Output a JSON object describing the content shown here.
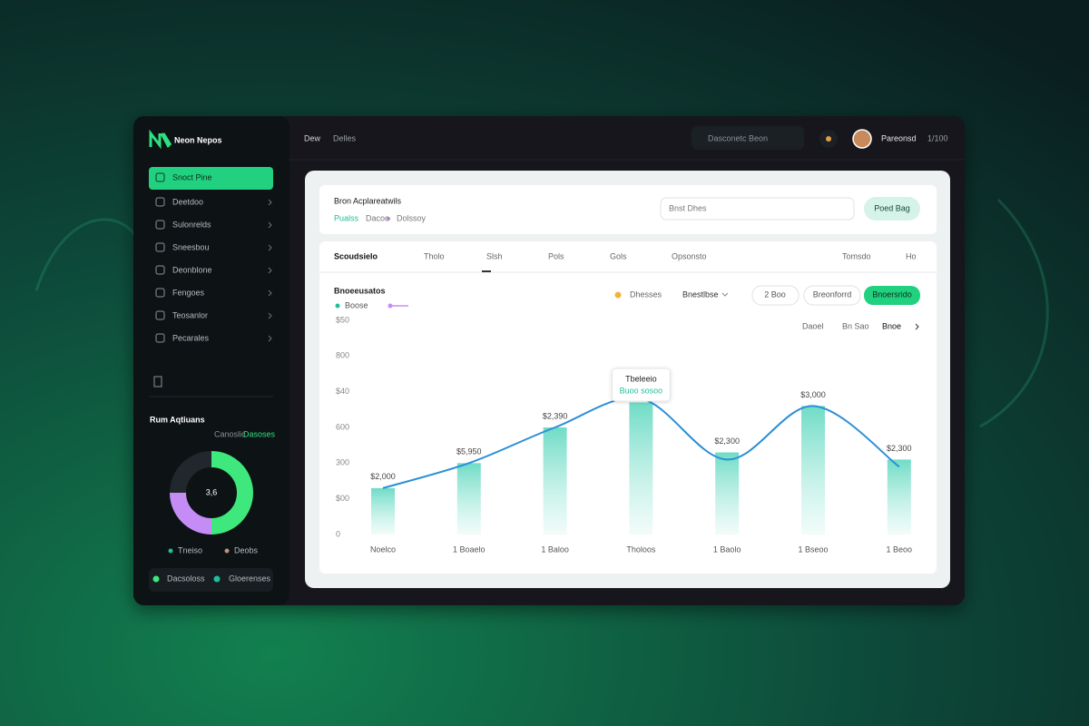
{
  "brand": "Neon Nepos",
  "breadcrumb": [
    "Dew",
    "Delles"
  ],
  "search": "Dasconetc Beon",
  "user": "Pareonsd",
  "user_meta": "1/100",
  "nav": [
    "Snoct Pine",
    "Deetdoo",
    "Sulonrelds",
    "Sneesbou",
    "Deonblone",
    "Fengoes",
    "Teosanlor",
    "Pecarales"
  ],
  "sidebar_section": {
    "title": "Rum Aqtiuans",
    "links": [
      "Canoslic",
      "Dasoses"
    ],
    "donut": {
      "center": "3,6",
      "values": [
        50,
        25,
        25
      ],
      "colors": [
        "#3ee87c",
        "#c58cf5",
        "#20282d"
      ]
    },
    "legend": [
      "Tneiso",
      "Deobs"
    ]
  },
  "sidebar_footer": [
    "Dacsoloss",
    "Gloerenses"
  ],
  "header": {
    "title": "Bron Acplareatwils",
    "tabs": [
      "Pualss",
      "Dacoo",
      "Dolssoy"
    ],
    "search": "Bnst Dhes",
    "button": "Poed Bag"
  },
  "table_tabs": [
    "Scoudsielo",
    "Tholo",
    "Slsh",
    "Pols",
    "Gols",
    "Opsonsto",
    "Tomsdo",
    "Ho"
  ],
  "chart": {
    "type": "bar",
    "title": "Bnoeeusatos",
    "legend": [
      "Boose"
    ],
    "controls": [
      "Dhesses",
      "Bnestlbse",
      "2 Boo",
      "Breonforrd",
      "Bnoersrido"
    ],
    "views": [
      "Daoel",
      "Bn Sao",
      "Bnoe"
    ],
    "y_labels": [
      "0",
      "$00",
      "300",
      "600",
      "$40",
      "800",
      "$50"
    ],
    "ylim": [
      0,
      6
    ],
    "categories": [
      "Noelco",
      "1 Boaelo",
      "1 Baloo",
      "Tholoos",
      "1 Baolo",
      "1 Bseoo",
      "1 Beoo"
    ],
    "series": [
      {
        "color": "#7fe3cf",
        "values": [
          1.3,
          2.0,
          3.0,
          3.7,
          2.3,
          3.6,
          2.1
        ],
        "value_labels": [
          "$2,000",
          "$5,950",
          "$2,390",
          null,
          "$2,300",
          "$3,000",
          "$2,300"
        ]
      },
      {
        "color": "#2b8fd6",
        "values": [
          1.3,
          2.0,
          3.0,
          3.8,
          2.1,
          3.6,
          1.9
        ]
      }
    ],
    "tooltip": [
      "Tbeleeio",
      "Buoo sosoo"
    ]
  }
}
